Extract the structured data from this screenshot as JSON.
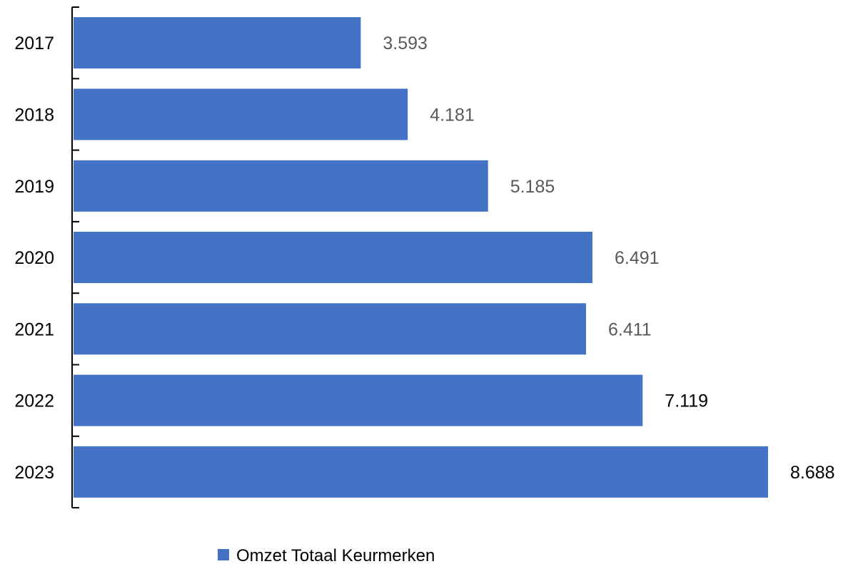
{
  "chart_data": {
    "type": "bar",
    "orientation": "horizontal",
    "categories": [
      "2017",
      "2018",
      "2019",
      "2020",
      "2021",
      "2022",
      "2023"
    ],
    "series": [
      {
        "name": "Omzet Totaal Keurmerken",
        "values": [
          3593,
          4181,
          5185,
          6491,
          6411,
          7119,
          8688
        ],
        "data_labels": [
          "3.593",
          "4.181",
          "5.185",
          "6.491",
          "6.411",
          "7.119",
          "8.688"
        ],
        "color": "#4472C4"
      }
    ],
    "title": "",
    "xlabel": "",
    "ylabel": "",
    "xlim": [
      0,
      9000
    ],
    "grid": false,
    "legend": "bottom",
    "label_color_primary": "#595959",
    "label_color_last": "#000000"
  }
}
